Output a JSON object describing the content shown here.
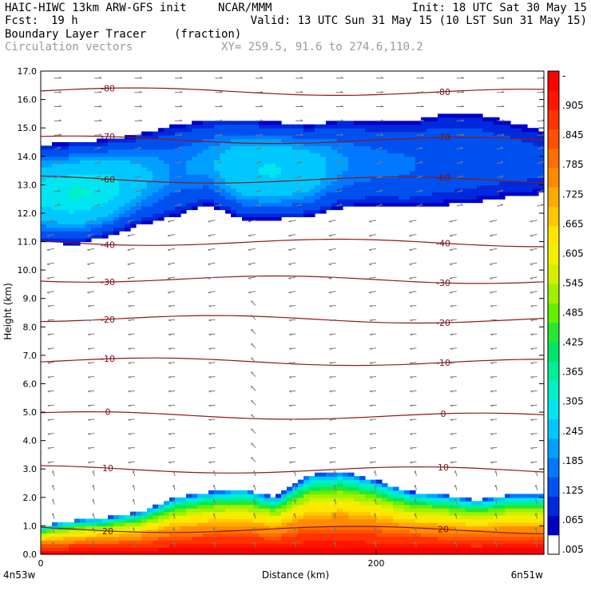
{
  "header": {
    "model": "HAIC-HIWC 13km ARW-GFS init",
    "org": "NCAR/MMM",
    "init": "Init: 18 UTC Sat 30 May 15",
    "fcst_label": "Fcst:",
    "fcst_value": "19 h",
    "valid": "Valid: 13 UTC Sun 31 May 15 (10 LST Sun 31 May 15)",
    "field": "Boundary Layer Tracer",
    "field_units": "(fraction)",
    "vectors": "Circulation vectors",
    "xy": "XY= 259.5, 91.6 to 274.6,110.2"
  },
  "colors": {
    "temp_contour": "#8b1a1a",
    "vector": "#7a7a7a",
    "palette": [
      "#ffffff",
      "#0000c8",
      "#0028dc",
      "#0050f0",
      "#0078ff",
      "#00a0ff",
      "#00c8ff",
      "#00e6f0",
      "#00f0c8",
      "#00f096",
      "#00e664",
      "#28e632",
      "#64f000",
      "#a0f000",
      "#d2f000",
      "#f0f000",
      "#ffe600",
      "#ffc800",
      "#ffaa00",
      "#ff8c00",
      "#ff6e00",
      "#ff5000",
      "#ff3200",
      "#ff1400",
      "#ff0000"
    ]
  },
  "chart_data": {
    "type": "heatmap",
    "title": "Boundary Layer Tracer",
    "units": "(fraction)",
    "xlabel": "Distance (km)",
    "ylabel": "Height (km)",
    "xlim": [
      0,
      300
    ],
    "ylim": [
      0.0,
      17.0
    ],
    "x_ticks": [
      {
        "value": 0,
        "label": "0"
      },
      {
        "value": 200,
        "label": "200"
      }
    ],
    "x_end_labels": {
      "left": "4n53w",
      "right": "6n51w"
    },
    "y_ticks": [
      "0.0",
      "1.0",
      "2.0",
      "3.0",
      "4.0",
      "5.0",
      "6.0",
      "7.0",
      "8.0",
      "9.0",
      "10.0",
      "11.0",
      "12.0",
      "13.0",
      "14.0",
      "15.0",
      "16.0",
      "17.0"
    ],
    "colorbar": {
      "levels": [
        0.005,
        0.035,
        0.065,
        0.095,
        0.125,
        0.155,
        0.185,
        0.215,
        0.245,
        0.275,
        0.305,
        0.335,
        0.365,
        0.395,
        0.425,
        0.455,
        0.485,
        0.515,
        0.545,
        0.575,
        0.605,
        0.635,
        0.665,
        0.695,
        0.725,
        0.755,
        0.785,
        0.815,
        0.845,
        0.875,
        0.905
      ],
      "labels": [
        ".005",
        ".065",
        ".125",
        ".185",
        ".245",
        ".305",
        ".365",
        ".425",
        ".485",
        ".545",
        ".605",
        ".665",
        ".725",
        ".785",
        ".845",
        ".905",
        "-"
      ]
    },
    "tracer_regions": [
      {
        "name": "upper-layer",
        "x": [
          0,
          20,
          40,
          60,
          80,
          100,
          120,
          140,
          160,
          180,
          200,
          220,
          240,
          260,
          280,
          300
        ],
        "bottom_km": [
          11.0,
          10.9,
          11.2,
          11.6,
          11.9,
          12.3,
          11.8,
          11.8,
          11.9,
          12.2,
          12.3,
          12.2,
          12.3,
          12.4,
          12.6,
          12.7
        ],
        "top_km": [
          14.4,
          14.5,
          14.6,
          14.8,
          15.1,
          15.3,
          15.3,
          15.2,
          15.1,
          15.3,
          15.2,
          15.2,
          15.5,
          15.5,
          15.2,
          14.9
        ],
        "peak_fraction": [
          0.24,
          0.26,
          0.25,
          0.18,
          0.13,
          0.15,
          0.22,
          0.23,
          0.2,
          0.14,
          0.12,
          0.11,
          0.09,
          0.08,
          0.07,
          0.06
        ]
      },
      {
        "name": "boundary-layer",
        "x": [
          0,
          20,
          40,
          60,
          80,
          100,
          120,
          140,
          160,
          180,
          200,
          220,
          240,
          260,
          280,
          300
        ],
        "top_km": [
          1.0,
          1.2,
          1.3,
          1.5,
          2.0,
          2.2,
          2.3,
          2.0,
          2.8,
          2.9,
          2.6,
          2.2,
          2.1,
          1.9,
          2.1,
          2.1
        ],
        "peak_fraction": [
          0.95,
          0.95,
          0.95,
          0.95,
          0.95,
          0.95,
          0.95,
          0.95,
          0.95,
          0.95,
          0.95,
          0.95,
          0.95,
          0.95,
          0.95,
          0.95
        ]
      }
    ],
    "temperature_contours": [
      {
        "label": "-80",
        "height_km": 16.3
      },
      {
        "label": "-70",
        "height_km": 14.6
      },
      {
        "label": "-60",
        "height_km": 13.2
      },
      {
        "label": "-40",
        "height_km": 11.0
      },
      {
        "label": "-30",
        "height_km": 9.7
      },
      {
        "label": "-20",
        "height_km": 8.3
      },
      {
        "label": "-10",
        "height_km": 6.8
      },
      {
        "label": "0",
        "height_km": 4.9
      },
      {
        "label": "10",
        "height_km": 3.0
      },
      {
        "label": "20",
        "height_km": 0.9
      }
    ],
    "grid": false
  }
}
